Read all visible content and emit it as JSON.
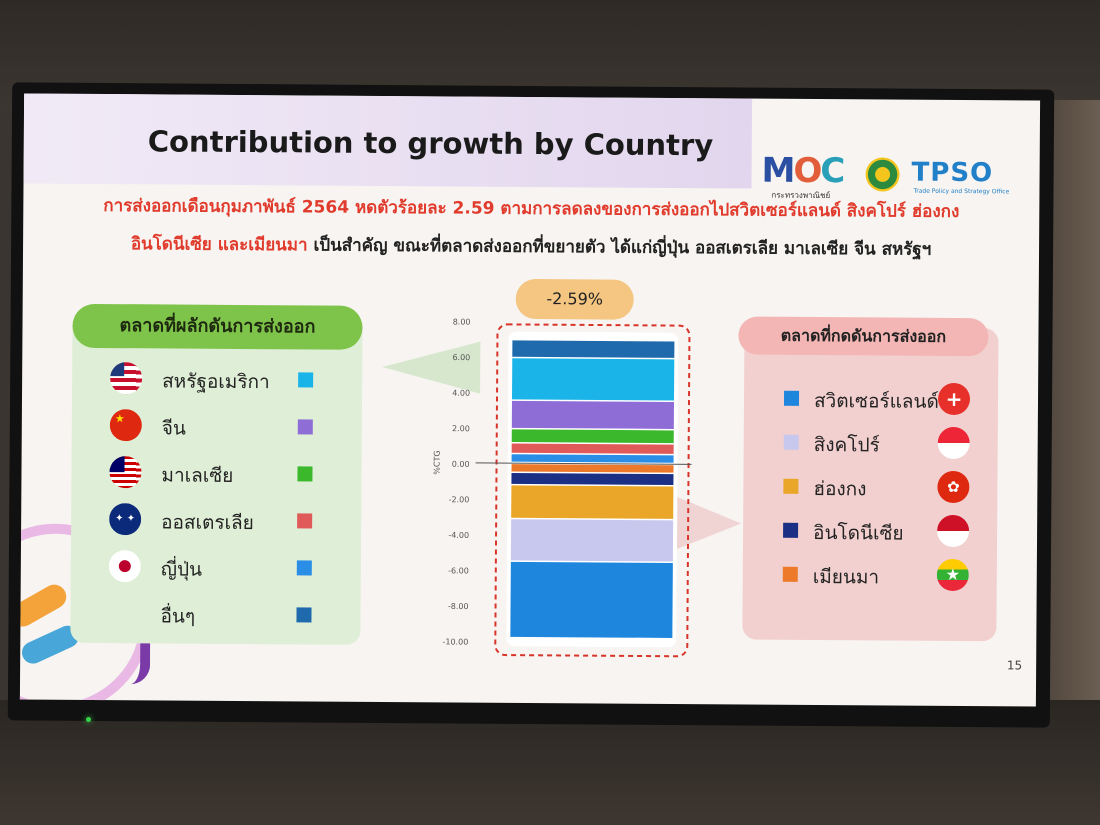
{
  "slide": {
    "title": "Contribution to growth by Country",
    "page_number": "15",
    "logos": {
      "moc": "MOC",
      "moc_sub": "กระทรวงพาณิชย์",
      "tpso": "TPSO",
      "tpso_sub": "Trade Policy and Strategy Office"
    },
    "headline_line1": "การส่งออกเดือนกุมภาพันธ์ 2564 หดตัวร้อยละ 2.59 ตามการลดลงของการส่งออกไปสวิตเซอร์แลนด์ สิงคโปร์ ฮ่องกง",
    "headline_line2_red": "อินโดนีเซีย และเมียนมา",
    "headline_line2_dark": " เป็นสำคัญ ขณะที่ตลาดส่งออกที่ขยายตัว ได้แก่ญี่ปุ่น ออสเตรเลีย มาเลเซีย จีน สหรัฐฯ",
    "left_panel_title": "ตลาดที่ผลักดันการส่งออก",
    "right_panel_title": "ตลาดที่กดดันการส่งออก",
    "total_badge": "-2.59%"
  },
  "left_items": [
    {
      "label": "สหรัฐอเมริกา",
      "color": "#1ab4e8",
      "flag": "us-flag-icon"
    },
    {
      "label": "จีน",
      "color": "#8f6dd6",
      "flag": "china-flag-icon"
    },
    {
      "label": "มาเลเซีย",
      "color": "#3cb82c",
      "flag": "malaysia-flag-icon"
    },
    {
      "label": "ออสเตรเลีย",
      "color": "#e05a5a",
      "flag": "australia-flag-icon"
    },
    {
      "label": "ญี่ปุ่น",
      "color": "#2a8ee6",
      "flag": "japan-flag-icon"
    },
    {
      "label": "อื่นๆ",
      "color": "#1f6aad",
      "flag": ""
    }
  ],
  "right_items": [
    {
      "label": "สวิตเซอร์แลนด์",
      "color": "#1f86dd",
      "flag": "switzerland-flag-icon"
    },
    {
      "label": "สิงคโปร์",
      "color": "#c8c8ee",
      "flag": "singapore-flag-icon"
    },
    {
      "label": "ฮ่องกง",
      "color": "#eaa629",
      "flag": "hongkong-flag-icon"
    },
    {
      "label": "อินโดนีเซีย",
      "color": "#1b2f84",
      "flag": "indonesia-flag-icon"
    },
    {
      "label": "เมียนมา",
      "color": "#ec7a2a",
      "flag": "myanmar-flag-icon"
    }
  ],
  "chart_data": {
    "type": "bar",
    "subtype": "stacked-waterfall",
    "ylabel": "%CTG",
    "ylim": [
      -10,
      8
    ],
    "yticks": [
      "8.00",
      "6.00",
      "4.00",
      "2.00",
      "0.00",
      "-2.00",
      "-4.00",
      "-6.00",
      "-8.00",
      "-10.00"
    ],
    "total": -2.59,
    "positive_segments": [
      {
        "name": "ญี่ปุ่น",
        "value": 0.5,
        "color": "#2a8ee6"
      },
      {
        "name": "ออสเตรเลีย",
        "value": 0.6,
        "color": "#e05a5a"
      },
      {
        "name": "มาเลเซีย",
        "value": 0.8,
        "color": "#3cb82c"
      },
      {
        "name": "จีน",
        "value": 1.6,
        "color": "#8f6dd6"
      },
      {
        "name": "สหรัฐอเมริกา",
        "value": 2.4,
        "color": "#1ab4e8"
      },
      {
        "name": "อื่นๆ",
        "value": 1.0,
        "color": "#1f6aad"
      }
    ],
    "negative_segments": [
      {
        "name": "เมียนมา",
        "value": -0.5,
        "color": "#ec7a2a"
      },
      {
        "name": "อินโดนีเซีย",
        "value": -0.7,
        "color": "#1b2f84"
      },
      {
        "name": "ฮ่องกง",
        "value": -1.9,
        "color": "#eaa629"
      },
      {
        "name": "สิงคโปร์",
        "value": -2.4,
        "color": "#c8c8ee"
      },
      {
        "name": "สวิตเซอร์แลนด์",
        "value": -4.3,
        "color": "#1f86dd"
      }
    ]
  }
}
